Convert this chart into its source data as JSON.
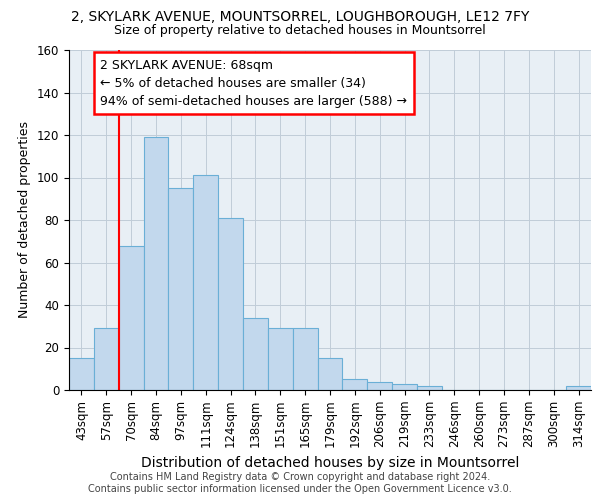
{
  "title_line1": "2, SKYLARK AVENUE, MOUNTSORREL, LOUGHBOROUGH, LE12 7FY",
  "title_line2": "Size of property relative to detached houses in Mountsorrel",
  "xlabel": "Distribution of detached houses by size in Mountsorrel",
  "ylabel": "Number of detached properties",
  "footer_line1": "Contains HM Land Registry data © Crown copyright and database right 2024.",
  "footer_line2": "Contains public sector information licensed under the Open Government Licence v3.0.",
  "categories": [
    "43sqm",
    "57sqm",
    "70sqm",
    "84sqm",
    "97sqm",
    "111sqm",
    "124sqm",
    "138sqm",
    "151sqm",
    "165sqm",
    "179sqm",
    "192sqm",
    "206sqm",
    "219sqm",
    "233sqm",
    "246sqm",
    "260sqm",
    "273sqm",
    "287sqm",
    "300sqm",
    "314sqm"
  ],
  "values": [
    15,
    29,
    68,
    119,
    95,
    101,
    81,
    34,
    29,
    29,
    15,
    5,
    4,
    3,
    2,
    0,
    0,
    0,
    0,
    0,
    2
  ],
  "bar_color": "#c2d8ed",
  "bar_edge_color": "#6aafd6",
  "annotation_text_line1": "2 SKYLARK AVENUE: 68sqm",
  "annotation_text_line2": "← 5% of detached houses are smaller (34)",
  "annotation_text_line3": "94% of semi-detached houses are larger (588) →",
  "ylim": [
    0,
    160
  ],
  "yticks": [
    0,
    20,
    40,
    60,
    80,
    100,
    120,
    140,
    160
  ],
  "grid_color": "#c0ccd8",
  "background_color": "#e8eff5",
  "vertical_line_x": 2.0,
  "fig_width": 6.0,
  "fig_height": 5.0,
  "title_fontsize": 10,
  "subtitle_fontsize": 9,
  "footer_fontsize": 7,
  "tick_fontsize": 8.5,
  "ylabel_fontsize": 9,
  "xlabel_fontsize": 10,
  "ann_fontsize": 9
}
